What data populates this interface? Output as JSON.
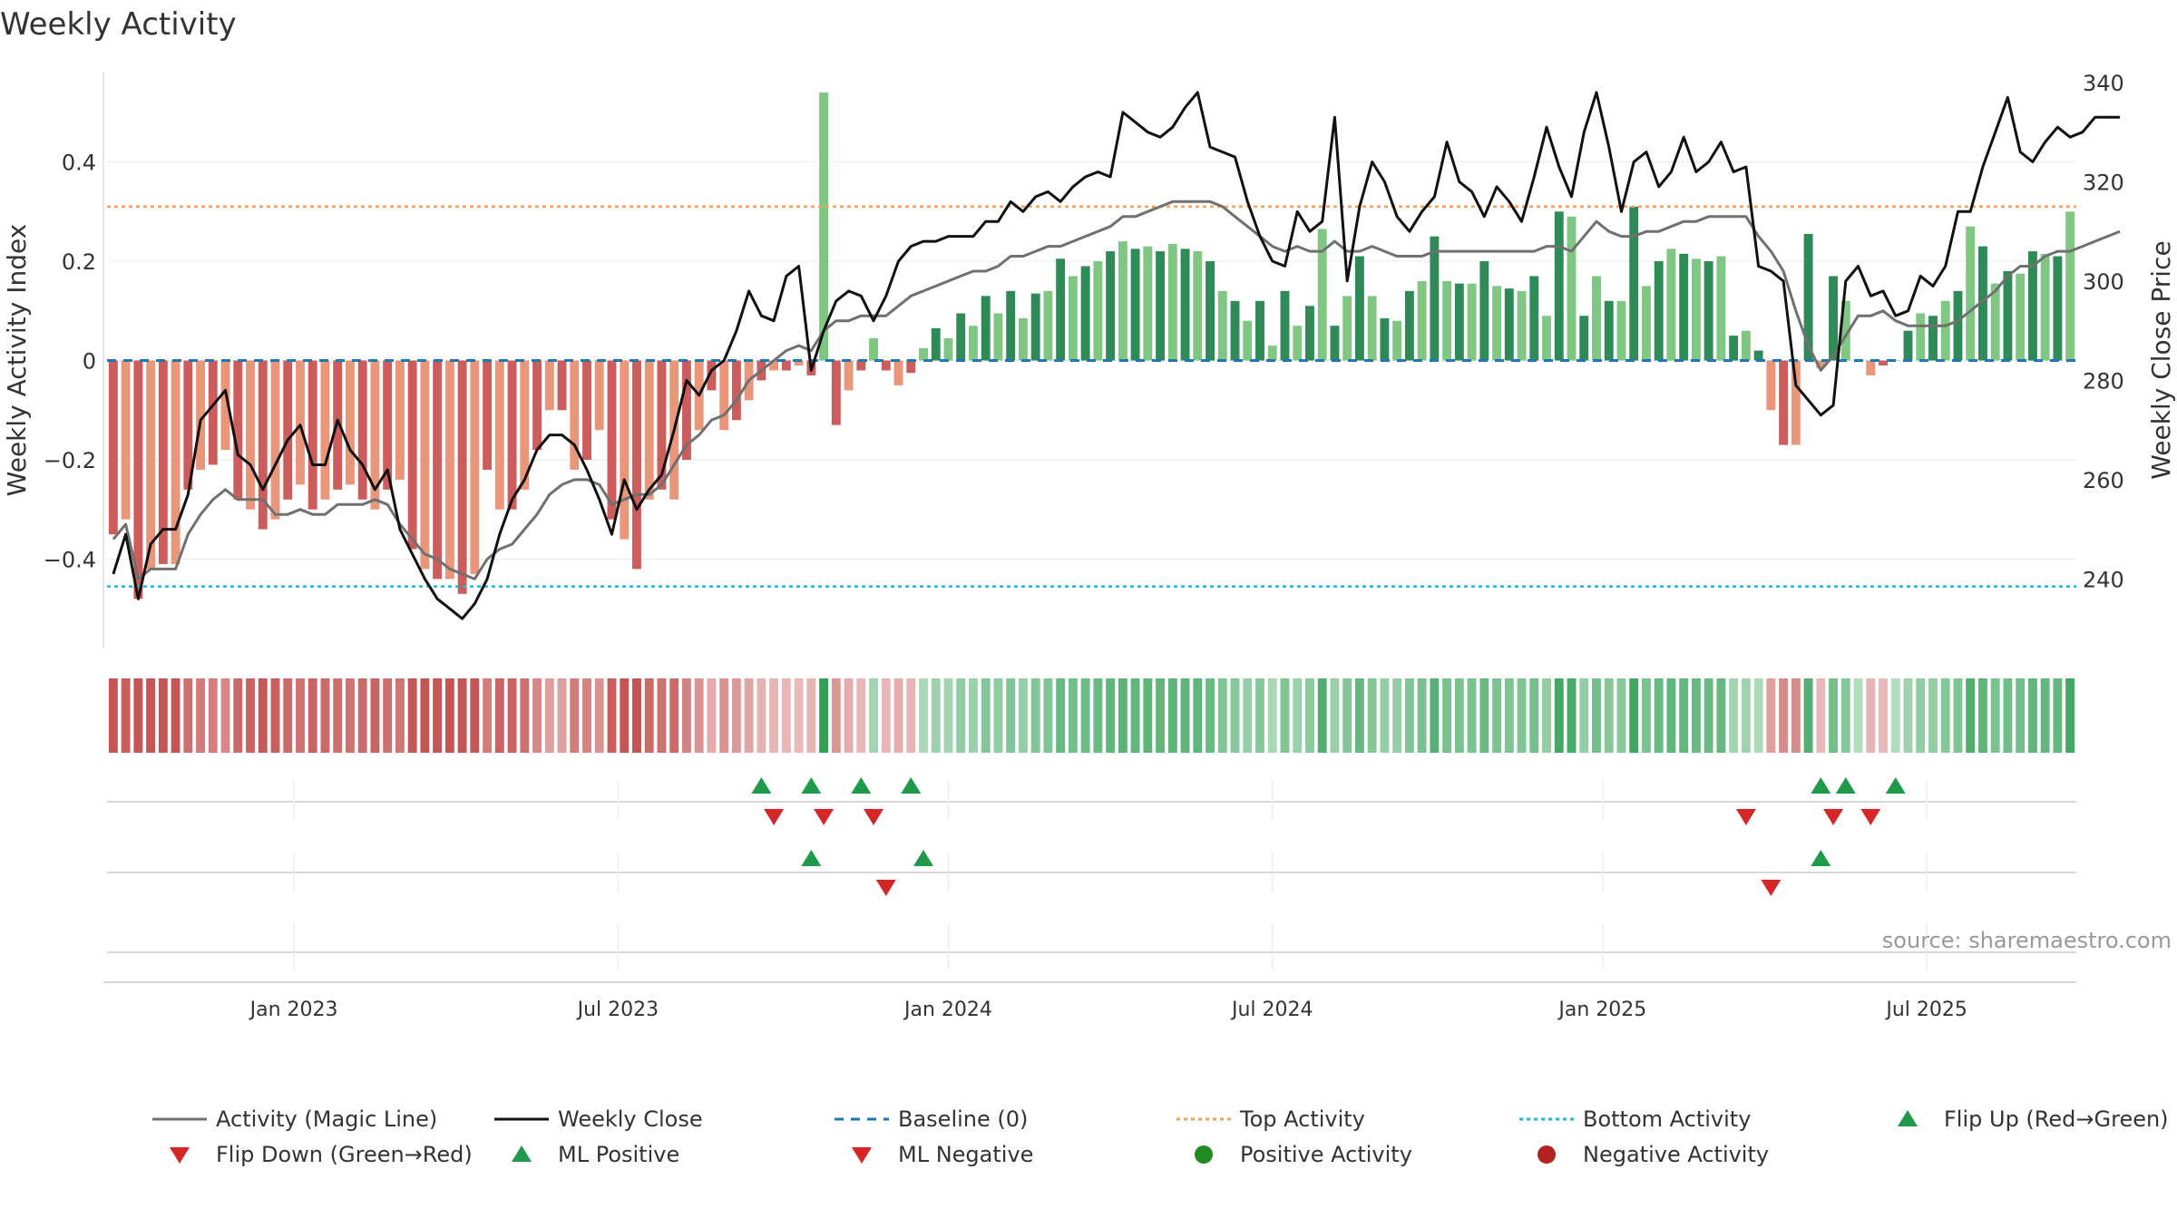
{
  "chart_data": {
    "type": "bar",
    "title": "Weekly Activity",
    "ylabel_left": "Weekly Activity Index",
    "ylabel_right": "Weekly Close Price",
    "y_left_ticks": [
      {
        "v": 0.4,
        "label": "0.4"
      },
      {
        "v": 0.2,
        "label": "0.2"
      },
      {
        "v": 0,
        "label": "0"
      },
      {
        "v": -0.2,
        "label": "−0.2"
      },
      {
        "v": -0.4,
        "label": "−0.4"
      }
    ],
    "y_right_ticks": [
      {
        "v": 340,
        "label": "340"
      },
      {
        "v": 320,
        "label": "320"
      },
      {
        "v": 300,
        "label": "300"
      },
      {
        "v": 280,
        "label": "280"
      },
      {
        "v": 260,
        "label": "260"
      },
      {
        "v": 240,
        "label": "240"
      }
    ],
    "x_ticks": [
      {
        "i": 14.5,
        "label": "Jan 2023"
      },
      {
        "i": 40.5,
        "label": "Jul 2023"
      },
      {
        "i": 67,
        "label": "Jan 2024"
      },
      {
        "i": 93,
        "label": "Jul 2024"
      },
      {
        "i": 119.5,
        "label": "Jan 2025"
      },
      {
        "i": 145.5,
        "label": "Jul 2025"
      }
    ],
    "ylim_left": [
      -0.58,
      0.58
    ],
    "ylim_right": [
      226,
      342
    ],
    "top_activity": 0.31,
    "bottom_activity": -0.455,
    "baseline": 0,
    "colors": {
      "pos_strong": "#2e8b57",
      "pos_light": "#81c784",
      "neg_strong": "#cd5c5c",
      "neg_light": "#e9967a",
      "close": "#111111",
      "magic": "#707070",
      "baseline": "#1f77b4",
      "top": "#f4a460",
      "bottom": "#17becf",
      "up_marker": "#1f9a4a",
      "down_marker": "#d62728",
      "pos_dot": "#228b22",
      "neg_dot": "#b22222"
    },
    "activity": [
      -0.35,
      -0.32,
      -0.48,
      -0.42,
      -0.41,
      -0.41,
      -0.26,
      -0.22,
      -0.21,
      -0.18,
      -0.28,
      -0.3,
      -0.34,
      -0.32,
      -0.28,
      -0.25,
      -0.3,
      -0.28,
      -0.26,
      -0.25,
      -0.28,
      -0.3,
      -0.26,
      -0.24,
      -0.38,
      -0.42,
      -0.44,
      -0.44,
      -0.47,
      -0.43,
      -0.22,
      -0.3,
      -0.3,
      -0.26,
      -0.18,
      -0.1,
      -0.1,
      -0.22,
      -0.2,
      -0.14,
      -0.32,
      -0.36,
      -0.42,
      -0.28,
      -0.26,
      -0.28,
      -0.2,
      -0.14,
      -0.06,
      -0.14,
      -0.12,
      -0.08,
      -0.04,
      -0.02,
      -0.02,
      -0.01,
      -0.03,
      0.54,
      -0.13,
      -0.06,
      -0.02,
      0.045,
      -0.02,
      -0.05,
      -0.025,
      0.025,
      0.065,
      0.045,
      0.095,
      0.07,
      0.13,
      0.095,
      0.14,
      0.085,
      0.135,
      0.14,
      0.205,
      0.17,
      0.19,
      0.2,
      0.22,
      0.24,
      0.225,
      0.23,
      0.22,
      0.235,
      0.225,
      0.22,
      0.2,
      0.14,
      0.12,
      0.08,
      0.12,
      0.03,
      0.14,
      0.07,
      0.11,
      0.265,
      0.07,
      0.13,
      0.21,
      0.13,
      0.085,
      0.08,
      0.14,
      0.16,
      0.25,
      0.16,
      0.155,
      0.155,
      0.2,
      0.15,
      0.145,
      0.14,
      0.17,
      0.09,
      0.3,
      0.29,
      0.09,
      0.17,
      0.12,
      0.12,
      0.31,
      0.15,
      0.2,
      0.225,
      0.215,
      0.205,
      0.2,
      0.21,
      0.05,
      0.06,
      0.02,
      -0.1,
      -0.17,
      -0.17,
      0.255,
      -0.015,
      0.17,
      0.12,
      0.0,
      -0.03,
      -0.01,
      0.0,
      0.06,
      0.095,
      0.09,
      0.12,
      0.14,
      0.27,
      0.23,
      0.155,
      0.18,
      0.175,
      0.22,
      0.215,
      0.21,
      0.3
    ],
    "close": [
      241,
      249,
      236,
      247,
      250,
      250,
      257,
      272,
      275,
      278,
      265,
      263,
      258,
      263,
      268,
      271,
      263,
      263,
      272,
      266,
      263,
      258,
      262,
      250,
      245,
      240,
      236,
      234,
      232,
      235,
      240,
      249,
      256,
      260,
      266,
      269,
      269,
      267,
      262,
      256,
      249,
      260,
      254,
      258,
      261,
      270,
      280,
      277,
      282,
      284,
      290,
      298,
      293,
      292,
      301,
      303,
      282,
      290,
      296,
      298,
      297,
      292,
      297,
      304,
      307,
      308,
      308,
      309,
      309,
      309,
      312,
      312,
      316,
      314,
      317,
      318,
      316,
      319,
      321,
      322,
      321,
      334,
      332,
      330,
      329,
      331,
      335,
      338,
      327,
      326,
      325,
      316,
      309,
      304,
      303,
      314,
      310,
      312,
      333,
      300,
      315,
      324,
      320,
      313,
      310,
      314,
      317,
      328,
      320,
      318,
      313,
      319,
      316,
      312,
      321,
      331,
      323,
      317,
      330,
      338,
      327,
      314,
      324,
      326,
      319,
      322,
      329,
      322,
      324,
      328,
      322,
      323,
      303,
      302,
      300,
      279,
      276,
      273,
      275,
      300,
      303,
      297,
      298,
      293,
      294,
      301,
      299,
      303,
      314,
      314,
      323,
      330,
      337,
      326,
      324,
      328,
      331,
      329,
      330,
      333,
      333,
      333
    ],
    "magic": [
      248,
      251,
      240,
      242,
      242,
      242,
      249,
      253,
      256,
      258,
      256,
      256,
      256,
      253,
      253,
      254,
      253,
      253,
      255,
      255,
      255,
      256,
      255,
      251,
      248,
      245,
      244,
      242,
      241,
      240,
      244,
      246,
      247,
      250,
      253,
      257,
      259,
      260,
      260,
      259,
      255,
      256,
      257,
      257,
      259,
      263,
      267,
      269,
      272,
      273,
      276,
      280,
      282,
      284,
      286,
      287,
      286,
      290,
      292,
      292,
      293,
      293,
      293,
      295,
      297,
      298,
      299,
      300,
      301,
      302,
      302,
      303,
      305,
      305,
      306,
      307,
      307,
      308,
      309,
      310,
      311,
      313,
      313,
      314,
      315,
      316,
      316,
      316,
      316,
      315,
      313,
      311,
      309,
      307,
      306,
      307,
      306,
      306,
      308,
      306,
      306,
      307,
      306,
      305,
      305,
      305,
      306,
      306,
      306,
      306,
      306,
      306,
      306,
      306,
      306,
      307,
      307,
      306,
      309,
      312,
      310,
      309,
      309,
      310,
      310,
      311,
      312,
      312,
      313,
      313,
      313,
      313,
      309,
      306,
      302,
      294,
      287,
      282,
      285,
      289,
      293,
      293,
      294,
      292,
      291,
      291,
      291,
      291,
      292,
      294,
      296,
      298,
      301,
      303,
      303,
      305,
      306,
      306,
      307,
      308,
      309,
      310
    ],
    "flip_up": [
      52,
      56,
      60,
      64,
      137,
      139,
      143
    ],
    "flip_down": [
      53,
      57,
      61,
      131,
      138,
      141
    ],
    "ml_positive": [
      56,
      65,
      137
    ],
    "ml_negative": [
      62,
      133
    ],
    "source": "source: sharemaestro.com",
    "legend": [
      {
        "label": "Activity (Magic Line)",
        "kind": "line",
        "color": "#707070",
        "dash": ""
      },
      {
        "label": "Weekly Close",
        "kind": "line",
        "color": "#111111",
        "dash": ""
      },
      {
        "label": "Baseline (0)",
        "kind": "line",
        "color": "#1f77b4",
        "dash": "10,8"
      },
      {
        "label": "Top Activity",
        "kind": "line",
        "color": "#f4a460",
        "dash": "4,4"
      },
      {
        "label": "Bottom Activity",
        "kind": "line",
        "color": "#17becf",
        "dash": "4,4"
      },
      {
        "label": "Flip Up (Red→Green)",
        "kind": "up",
        "color": "#1f9a4a",
        "dash": ""
      },
      {
        "label": "Flip Down (Green→Red)",
        "kind": "down",
        "color": "#d62728",
        "dash": ""
      },
      {
        "label": "ML Positive",
        "kind": "up",
        "color": "#1f9a4a",
        "dash": ""
      },
      {
        "label": "ML Negative",
        "kind": "down",
        "color": "#d62728",
        "dash": ""
      },
      {
        "label": "Positive Activity",
        "kind": "dot",
        "color": "#228b22",
        "dash": ""
      },
      {
        "label": "Negative Activity",
        "kind": "dot",
        "color": "#b22222",
        "dash": ""
      }
    ]
  }
}
